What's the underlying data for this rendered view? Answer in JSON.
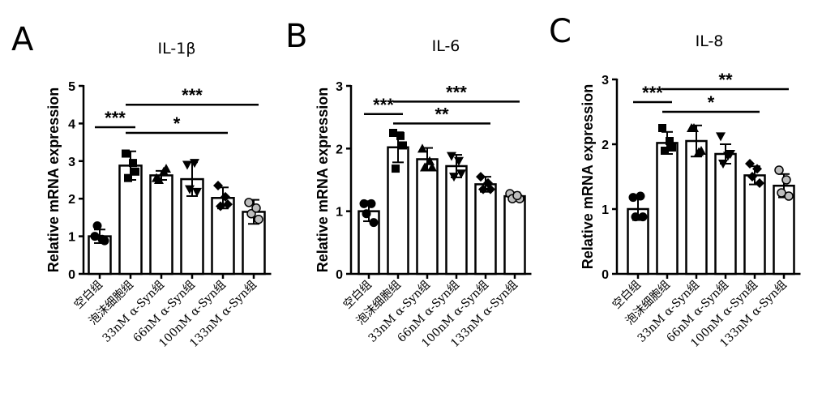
{
  "chart_data": [
    {
      "panel": "A",
      "type": "bar",
      "title": "IL-1β",
      "ylabel": "Relative mRNA expression",
      "ylim": [
        0,
        5
      ],
      "yticks": [
        0,
        1,
        2,
        3,
        4,
        5
      ],
      "categories": [
        "空白组",
        "泡沫细胞组",
        "33nM α-Syn组",
        "66nM α-Syn组",
        "100nM α-Syn组",
        "133nM α-Syn组"
      ],
      "values": [
        1.0,
        2.88,
        2.62,
        2.52,
        2.02,
        1.65
      ],
      "errors": [
        0.18,
        0.38,
        0.12,
        0.45,
        0.28,
        0.32
      ],
      "points": [
        [
          1.0,
          0.88,
          1.28,
          0.92
        ],
        [
          3.2,
          2.72,
          2.55,
          2.95
        ],
        [
          2.55,
          2.8,
          2.5,
          2.72
        ],
        [
          2.9,
          2.18,
          2.25,
          2.95
        ],
        [
          2.35,
          1.85,
          1.8,
          2.05
        ],
        [
          1.9,
          1.45,
          1.6,
          1.75
        ]
      ],
      "marker_styles": [
        "circle",
        "square",
        "triangle",
        "triangle-down",
        "diamond",
        "circle-gray"
      ],
      "significance": [
        {
          "from": 0,
          "to": 1,
          "y": 3.9,
          "label": "***"
        },
        {
          "from": 1,
          "to": 4,
          "y": 3.75,
          "label": "*"
        },
        {
          "from": 1,
          "to": 5,
          "y": 4.5,
          "label": "***"
        }
      ]
    },
    {
      "panel": "B",
      "type": "bar",
      "title": "IL-6",
      "ylabel": "Relative mRNA expression",
      "ylim": [
        0,
        3
      ],
      "yticks": [
        0,
        1,
        2,
        3
      ],
      "categories": [
        "空白组",
        "泡沫细胞组",
        "33nM α-Syn组",
        "66nM α-Syn组",
        "100nM α-Syn组",
        "133nM α-Syn组"
      ],
      "values": [
        1.0,
        2.02,
        1.83,
        1.72,
        1.43,
        1.24
      ],
      "errors": [
        0.16,
        0.24,
        0.18,
        0.18,
        0.12,
        0.06
      ],
      "points": [
        [
          1.12,
          0.82,
          0.96,
          1.12
        ],
        [
          2.25,
          2.05,
          1.68,
          2.2
        ],
        [
          2.0,
          1.7,
          1.7,
          1.8
        ],
        [
          1.88,
          1.6,
          1.55,
          1.8
        ],
        [
          1.55,
          1.35,
          1.35,
          1.45
        ],
        [
          1.28,
          1.2,
          1.2,
          1.25
        ]
      ],
      "marker_styles": [
        "circle",
        "square",
        "triangle",
        "triangle-down",
        "diamond",
        "circle-gray"
      ],
      "significance": [
        {
          "from": 0,
          "to": 1,
          "y": 2.55,
          "label": "***"
        },
        {
          "from": 1,
          "to": 4,
          "y": 2.4,
          "label": "**"
        },
        {
          "from": 1,
          "to": 5,
          "y": 2.75,
          "label": "***"
        }
      ]
    },
    {
      "panel": "C",
      "type": "bar",
      "title": "IL-8",
      "ylabel": "Relative mRNA expression",
      "ylim": [
        0,
        3
      ],
      "yticks": [
        0,
        1,
        2,
        3
      ],
      "categories": [
        "空白组",
        "泡沫细胞组",
        "33nM α-Syn组",
        "66nM α-Syn组",
        "100nM α-Syn组",
        "133nM α-Syn组"
      ],
      "values": [
        1.0,
        2.02,
        2.05,
        1.85,
        1.52,
        1.36
      ],
      "errors": [
        0.17,
        0.17,
        0.24,
        0.15,
        0.14,
        0.18
      ],
      "points": [
        [
          1.18,
          0.88,
          0.88,
          1.2
        ],
        [
          2.25,
          1.95,
          1.9,
          2.05
        ],
        [
          2.25,
          1.9,
          2.25,
          1.88
        ],
        [
          2.12,
          1.85,
          1.7,
          1.82
        ],
        [
          1.7,
          1.4,
          1.5,
          1.62
        ],
        [
          1.6,
          1.2,
          1.25,
          1.45
        ]
      ],
      "marker_styles": [
        "circle",
        "square",
        "triangle",
        "triangle-down",
        "diamond",
        "circle-gray"
      ],
      "significance": [
        {
          "from": 0,
          "to": 1,
          "y": 2.65,
          "label": "***"
        },
        {
          "from": 1,
          "to": 4,
          "y": 2.5,
          "label": "*"
        },
        {
          "from": 1,
          "to": 5,
          "y": 2.85,
          "label": "**"
        }
      ]
    }
  ]
}
